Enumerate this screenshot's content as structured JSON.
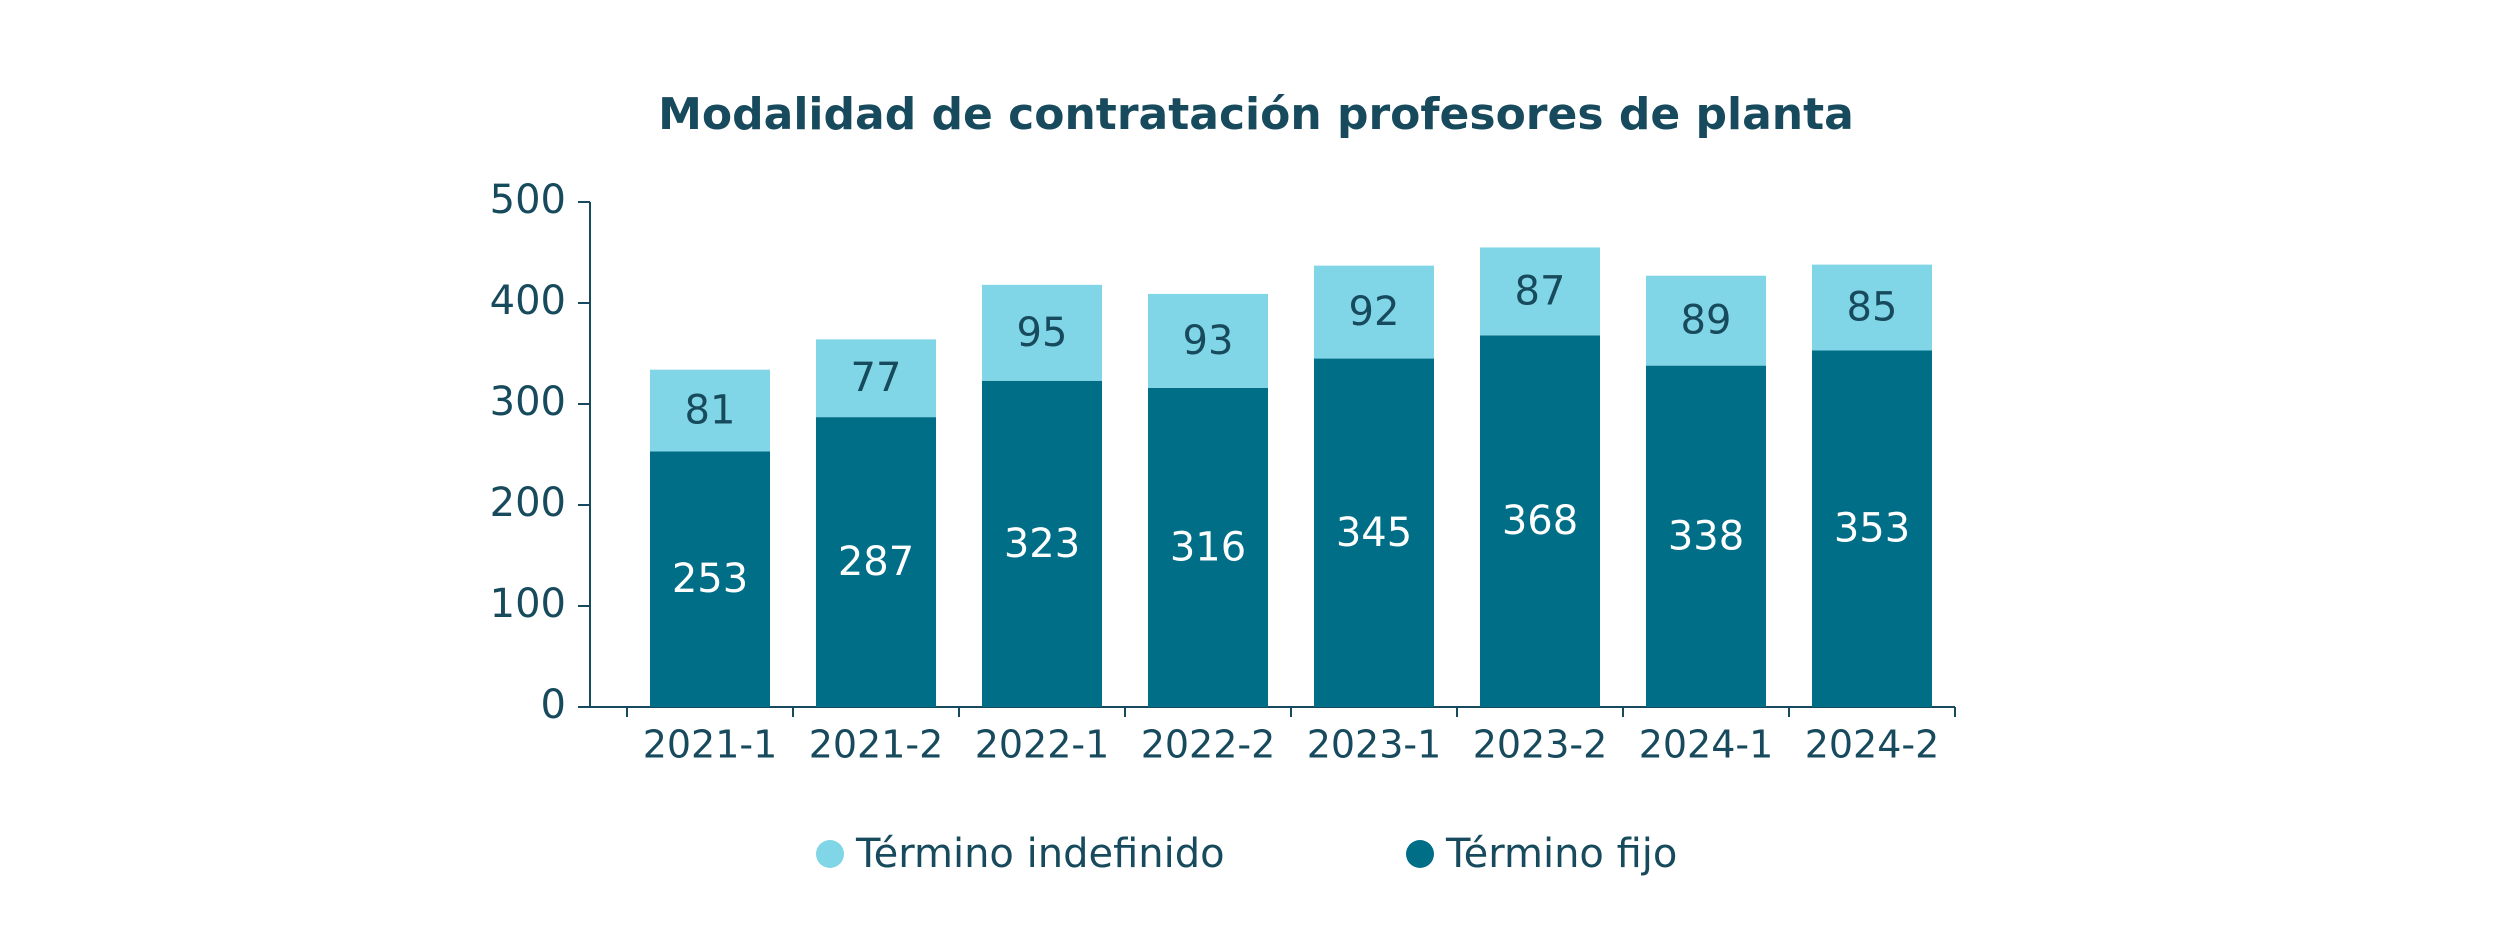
{
  "chart_data": {
    "type": "stacked_bar",
    "title": "Modalidad de contratación profesores de planta",
    "categories": [
      "2021-1",
      "2021-2",
      "2022-1",
      "2022-2",
      "2023-1",
      "2023-2",
      "2024-1",
      "2024-2"
    ],
    "series": [
      {
        "name": "Término fijo",
        "color": "#006e87",
        "values": [
          253,
          287,
          323,
          316,
          345,
          368,
          338,
          353
        ]
      },
      {
        "name": "Término indefinido",
        "color": "#80d5e6",
        "values": [
          81,
          77,
          95,
          93,
          92,
          87,
          89,
          85
        ]
      }
    ],
    "ylim": [
      0,
      500
    ],
    "yticks": [
      0,
      100,
      200,
      300,
      400,
      500
    ],
    "grid": false
  }
}
